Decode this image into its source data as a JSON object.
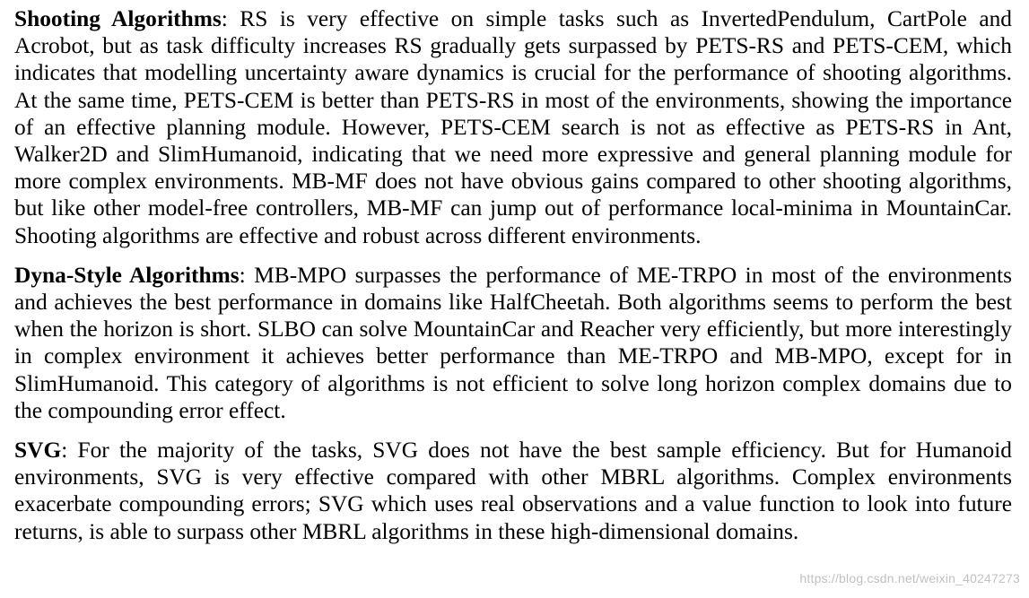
{
  "paragraphs": [
    {
      "heading": "Shooting Algorithms",
      "text": ": RS is very effective on simple tasks such as InvertedPendulum, CartPole and Acrobot, but as task difficulty increases RS gradually gets surpassed by PETS-RS and PETS-CEM, which indicates that modelling uncertainty aware dynamics is crucial for the performance of shooting algorithms.  At the same time, PETS-CEM is better than PETS-RS in most of the environments, showing the importance of an effective planning module.  However, PETS-CEM search is not as effective as PETS-RS in Ant, Walker2D and SlimHumanoid, indicating that we need more expressive and general planning module for more complex environments. MB-MF does not have obvious gains compared to other shooting algorithms, but like other model-free controllers, MB-MF can jump out of performance local-minima in MountainCar. Shooting algorithms are effective and robust across different environments."
    },
    {
      "heading": "Dyna-Style Algorithms",
      "text": ": MB-MPO surpasses the performance of ME-TRPO in most of the environ­ments and achieves the best performance in domains like HalfCheetah. Both algorithms seems to perform the best when the horizon is short.  SLBO can solve MountainCar and Reacher very effi­ciently, but more interestingly in complex environment it achieves better performance than ME-TRPO and MB-MPO, except for in SlimHumanoid. This category of algorithms is not efficient to solve long horizon complex domains due to the compounding error effect."
    },
    {
      "heading": "SVG",
      "text": ": For the majority of the tasks, SVG does not have the best sample efficiency. But for Humanoid environments, SVG is very effective compared with other MBRL algorithms. Complex environments exacerbate compounding errors; SVG which uses real observations and a value function to look into future returns, is able to surpass other MBRL algorithms in these high-dimensional domains."
    }
  ],
  "watermark": "https://blog.csdn.net/weixin_40247273"
}
